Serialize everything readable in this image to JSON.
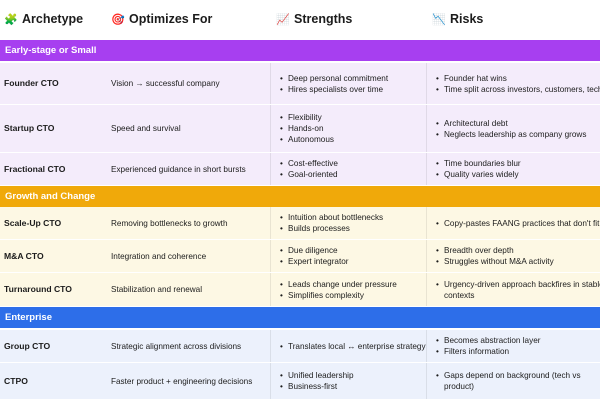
{
  "headers": [
    {
      "icon": "puzzle-icon",
      "glyph": "🧩",
      "label": "Archetype"
    },
    {
      "icon": "target-icon",
      "glyph": "🎯",
      "label": "Optimizes For"
    },
    {
      "icon": "chart-up-icon",
      "glyph": "📈",
      "label": "Strengths"
    },
    {
      "icon": "chart-down-icon",
      "glyph": "📉",
      "label": "Risks"
    }
  ],
  "colors": {
    "early": "#a73ff0",
    "growth": "#f0a90a",
    "enterprise": "#2d6ee9"
  },
  "sections": [
    {
      "title": "Early-stage or Small"
    },
    {
      "title": "Growth and Change"
    },
    {
      "title": "Enterprise"
    }
  ],
  "rows": [
    {
      "name": "Founder CTO",
      "opt": "Vision → successful company",
      "strengths": [
        "Deep personal commitment",
        "Hires specialists over time"
      ],
      "risks": [
        "Founder hat wins",
        "Time split across investors, customers, tech"
      ]
    },
    {
      "name": "Startup CTO",
      "opt": "Speed and survival",
      "strengths": [
        "Flexibility",
        "Hands-on",
        "Autonomous"
      ],
      "risks": [
        "Architectural debt",
        "Neglects leadership as company grows"
      ]
    },
    {
      "name": "Fractional CTO",
      "opt": "Experienced guidance in short bursts",
      "strengths": [
        "Cost-effective",
        "Goal-oriented"
      ],
      "risks": [
        "Time boundaries blur",
        "Quality varies widely"
      ]
    },
    {
      "name": "Scale-Up CTO",
      "opt": "Removing bottlenecks to growth",
      "strengths": [
        "Intuition about bottlenecks",
        "Builds processes"
      ],
      "risks": [
        "Copy-pastes FAANG practices that don't fit"
      ]
    },
    {
      "name": "M&A CTO",
      "opt": "Integration and coherence",
      "strengths": [
        "Due diligence",
        "Expert integrator"
      ],
      "risks": [
        "Breadth over depth",
        "Struggles without M&A activity"
      ]
    },
    {
      "name": "Turnaround CTO",
      "opt": "Stabilization and renewal",
      "strengths": [
        "Leads change under pressure",
        "Simplifies complexity"
      ],
      "risks": [
        "Urgency-driven approach backfires in stable contexts"
      ]
    },
    {
      "name": "Group CTO",
      "opt": "Strategic alignment across divisions",
      "strengths": [
        "Translates local ↔ enterprise strategy"
      ],
      "risks": [
        "Becomes abstraction layer",
        "Filters information"
      ]
    },
    {
      "name": "CTPO",
      "opt": "Faster product + engineering decisions",
      "strengths": [
        "Unified leadership",
        "Business-first"
      ],
      "risks": [
        "Gaps depend on background (tech vs product)"
      ]
    }
  ]
}
